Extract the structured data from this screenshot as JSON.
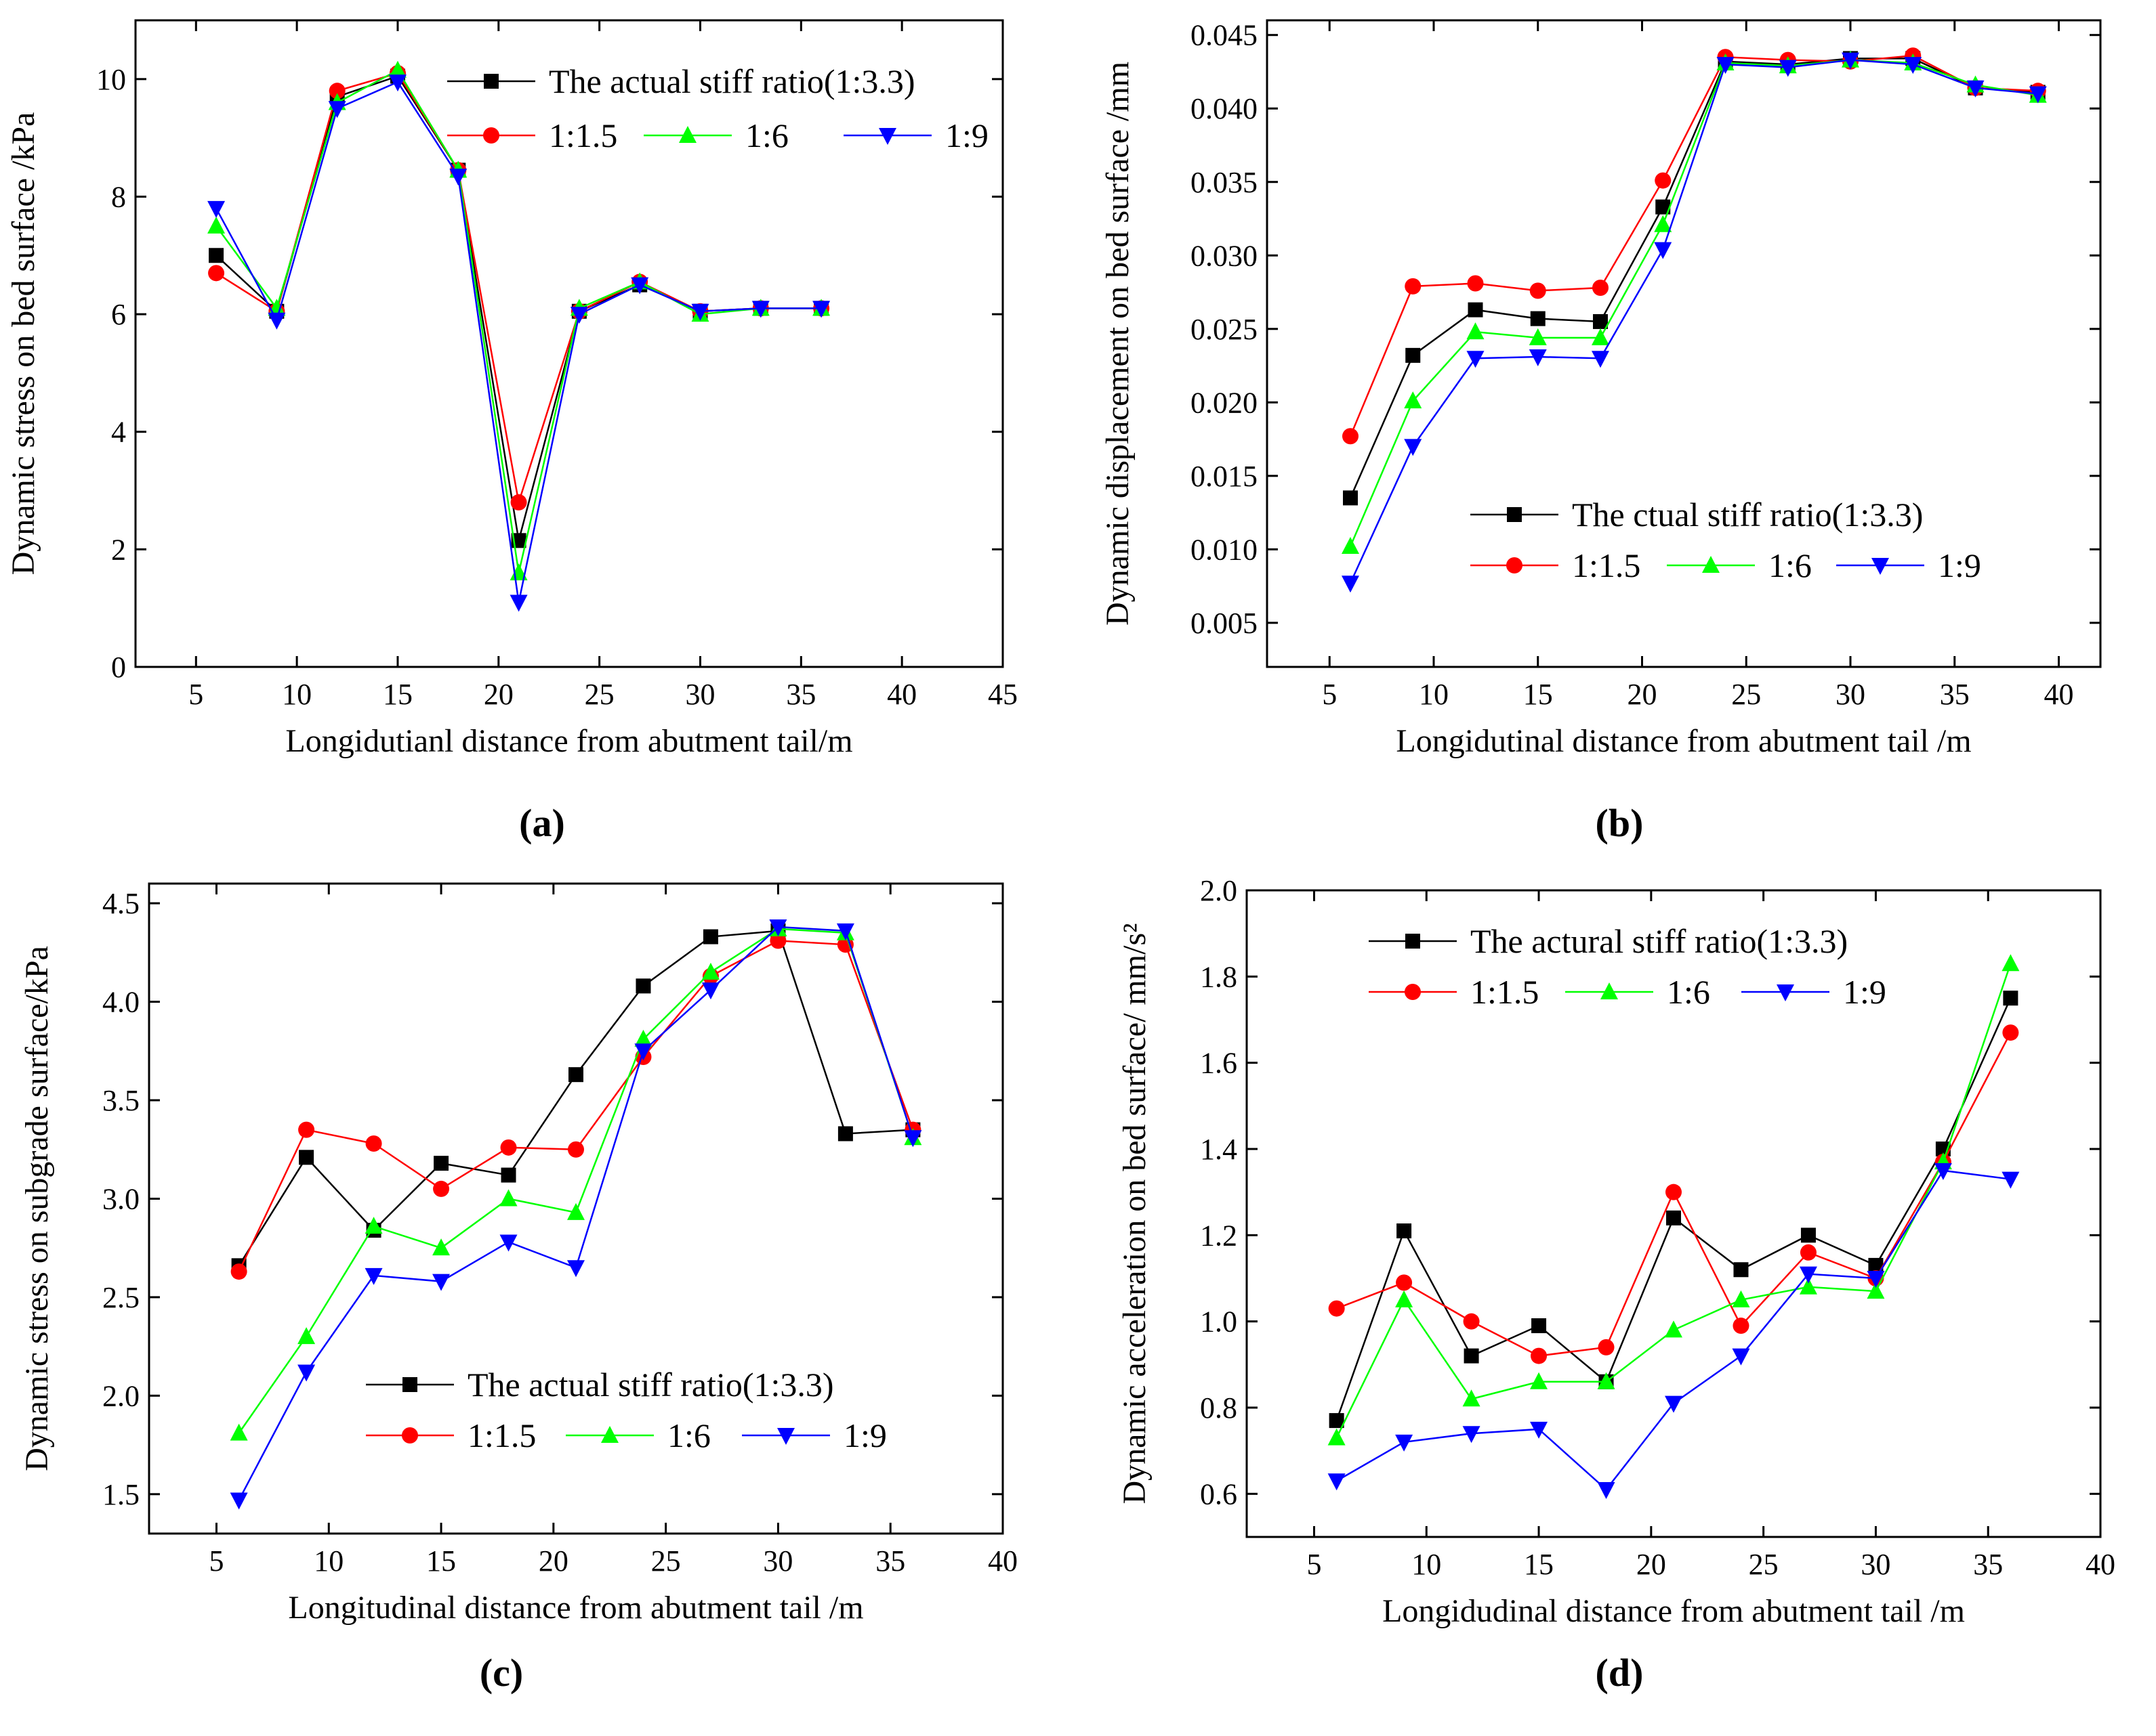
{
  "figure": {
    "panel_labels": [
      "(a)",
      "(b)",
      "(c)",
      "(d)"
    ]
  },
  "chart_data": [
    {
      "id": "a",
      "type": "line",
      "ylabel": "Dynamic stress on bed surface /kPa",
      "xlabel": "Longidutianl distance from abutment tail/m",
      "xlim": [
        2,
        45
      ],
      "ylim": [
        0,
        11
      ],
      "xticks": [
        5,
        10,
        15,
        20,
        25,
        30,
        35,
        40,
        45
      ],
      "yticks": [
        0,
        2,
        4,
        6,
        8,
        10
      ],
      "ytick_labels": [
        "0",
        "2",
        "4",
        "6",
        "8",
        "10"
      ],
      "legend_position": "top-right",
      "x": [
        6,
        9,
        12,
        15,
        18,
        21,
        24,
        27,
        30,
        33,
        36
      ],
      "series": [
        {
          "name": "The actual stiff ratio(1:3.3)",
          "color": "#000000",
          "marker": "square",
          "values": [
            7.0,
            6.05,
            9.7,
            10.05,
            8.45,
            2.15,
            6.05,
            6.5,
            6.05,
            6.1,
            6.1
          ]
        },
        {
          "name": "1:1.5",
          "color": "#ff0000",
          "marker": "circle",
          "values": [
            6.7,
            6.05,
            9.8,
            10.1,
            8.45,
            2.8,
            6.05,
            6.55,
            6.05,
            6.1,
            6.1
          ]
        },
        {
          "name": "1:6",
          "color": "#00ff00",
          "marker": "triangle-up",
          "values": [
            7.5,
            6.1,
            9.6,
            10.15,
            8.45,
            1.6,
            6.1,
            6.55,
            6.0,
            6.1,
            6.1
          ]
        },
        {
          "name": "1:9",
          "color": "#0000ff",
          "marker": "triangle-down",
          "values": [
            7.8,
            5.9,
            9.5,
            9.95,
            8.35,
            1.1,
            6.0,
            6.5,
            6.05,
            6.1,
            6.1
          ]
        }
      ]
    },
    {
      "id": "b",
      "type": "line",
      "ylabel": "Dynamic displacement on bed surface /mm",
      "xlabel": "Longidutinal distance from abutment tail /m",
      "xlim": [
        2,
        42
      ],
      "ylim": [
        0.002,
        0.046
      ],
      "xticks": [
        5,
        10,
        15,
        20,
        25,
        30,
        35,
        40
      ],
      "yticks": [
        0.005,
        0.01,
        0.015,
        0.02,
        0.025,
        0.03,
        0.035,
        0.04,
        0.045
      ],
      "ytick_labels": [
        "0.005",
        "0.010",
        "0.015",
        "0.020",
        "0.025",
        "0.030",
        "0.035",
        "0.040",
        "0.045"
      ],
      "legend_position": "center-right",
      "x": [
        6,
        9,
        12,
        15,
        18,
        21,
        24,
        27,
        30,
        33,
        36,
        39
      ],
      "series": [
        {
          "name": "The ctual stiff ratio(1:3.3)",
          "color": "#000000",
          "marker": "square",
          "values": [
            0.0135,
            0.0232,
            0.0263,
            0.0257,
            0.0255,
            0.0333,
            0.0432,
            0.043,
            0.0434,
            0.0434,
            0.0414,
            0.0411
          ]
        },
        {
          "name": "1:1.5",
          "color": "#ff0000",
          "marker": "circle",
          "values": [
            0.0177,
            0.0279,
            0.0281,
            0.0276,
            0.0278,
            0.0351,
            0.0435,
            0.0433,
            0.0432,
            0.0436,
            0.0414,
            0.0412
          ]
        },
        {
          "name": "1:6",
          "color": "#00ff00",
          "marker": "triangle-up",
          "values": [
            0.0102,
            0.0201,
            0.0248,
            0.0244,
            0.0244,
            0.0321,
            0.0431,
            0.0429,
            0.0433,
            0.0431,
            0.0416,
            0.0409
          ]
        },
        {
          "name": "1:9",
          "color": "#0000ff",
          "marker": "triangle-down",
          "values": [
            0.0077,
            0.017,
            0.023,
            0.0231,
            0.023,
            0.0304,
            0.043,
            0.0428,
            0.0433,
            0.043,
            0.0414,
            0.041
          ]
        }
      ]
    },
    {
      "id": "c",
      "type": "line",
      "ylabel": "Dynamic stress on subgrade surface/kPa",
      "xlabel": "Longitudinal distance from abutment tail /m",
      "xlim": [
        2,
        40
      ],
      "ylim": [
        1.3,
        4.6
      ],
      "xticks": [
        5,
        10,
        15,
        20,
        25,
        30,
        35,
        40
      ],
      "yticks": [
        1.5,
        2.0,
        2.5,
        3.0,
        3.5,
        4.0,
        4.5
      ],
      "ytick_labels": [
        "1.5",
        "2.0",
        "2.5",
        "3.0",
        "3.5",
        "4.0",
        "4.5"
      ],
      "legend_position": "bottom-right",
      "x": [
        6,
        9,
        12,
        15,
        18,
        21,
        24,
        27,
        30,
        33,
        36
      ],
      "series": [
        {
          "name": "The actual stiff ratio(1:3.3)",
          "color": "#000000",
          "marker": "square",
          "values": [
            2.66,
            3.21,
            2.84,
            3.18,
            3.12,
            3.63,
            4.08,
            4.33,
            4.36,
            3.33,
            3.35
          ]
        },
        {
          "name": "1:1.5",
          "color": "#ff0000",
          "marker": "circle",
          "values": [
            2.63,
            3.35,
            3.28,
            3.05,
            3.26,
            3.25,
            3.72,
            4.13,
            4.31,
            4.29,
            3.35
          ]
        },
        {
          "name": "1:6",
          "color": "#00ff00",
          "marker": "triangle-up",
          "values": [
            1.81,
            2.3,
            2.86,
            2.75,
            3.0,
            2.93,
            3.81,
            4.15,
            4.37,
            4.35,
            3.31
          ]
        },
        {
          "name": "1:9",
          "color": "#0000ff",
          "marker": "triangle-down",
          "values": [
            1.47,
            2.12,
            2.61,
            2.58,
            2.78,
            2.65,
            3.75,
            4.06,
            4.38,
            4.36,
            3.31
          ]
        }
      ]
    },
    {
      "id": "d",
      "type": "line",
      "ylabel": "Dynamic acceleration on bed surface/ mm/s²",
      "xlabel": "Longidudinal distance from abutment tail /m",
      "xlim": [
        2,
        40
      ],
      "ylim": [
        0.5,
        2.0
      ],
      "xticks": [
        5,
        10,
        15,
        20,
        25,
        30,
        35,
        40
      ],
      "yticks": [
        0.6,
        0.8,
        1.0,
        1.2,
        1.4,
        1.6,
        1.8,
        2.0
      ],
      "ytick_labels": [
        "0.6",
        "0.8",
        "1.0",
        "1.2",
        "1.4",
        "1.6",
        "1.8",
        "2.0"
      ],
      "legend_position": "top-left",
      "x": [
        6,
        9,
        12,
        15,
        18,
        21,
        24,
        27,
        30,
        33,
        36
      ],
      "series": [
        {
          "name": "The actural stiff ratio(1:3.3)",
          "color": "#000000",
          "marker": "square",
          "values": [
            0.77,
            1.21,
            0.92,
            0.99,
            0.86,
            1.24,
            1.12,
            1.2,
            1.13,
            1.4,
            1.75
          ]
        },
        {
          "name": "1:1.5",
          "color": "#ff0000",
          "marker": "circle",
          "values": [
            1.03,
            1.09,
            1.0,
            0.92,
            0.94,
            1.3,
            0.99,
            1.16,
            1.1,
            1.37,
            1.67
          ]
        },
        {
          "name": "1:6",
          "color": "#00ff00",
          "marker": "triangle-up",
          "values": [
            0.73,
            1.05,
            0.82,
            0.86,
            0.86,
            0.98,
            1.05,
            1.08,
            1.07,
            1.37,
            1.83
          ]
        },
        {
          "name": "1:9",
          "color": "#0000ff",
          "marker": "triangle-down",
          "values": [
            0.63,
            0.72,
            0.74,
            0.75,
            0.61,
            0.81,
            0.92,
            1.11,
            1.1,
            1.35,
            1.33
          ]
        }
      ]
    }
  ]
}
